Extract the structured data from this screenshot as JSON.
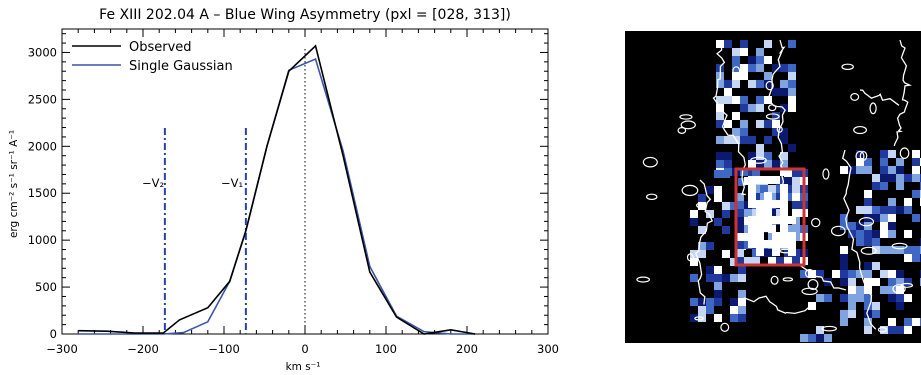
{
  "chart_data": [
    {
      "type": "line",
      "title": "Fe XIII 202.04 A – Blue Wing Asymmetry (pxl = [028, 313])",
      "xlabel": "km s⁻¹",
      "ylabel": "erg cm⁻² s⁻¹ sr⁻¹ A⁻¹",
      "xlim": [
        -300,
        300
      ],
      "ylim": [
        0,
        3250
      ],
      "xticks": [
        "−300",
        "−200",
        "−100",
        "0",
        "100",
        "200",
        "300"
      ],
      "yticks": [
        "0",
        "500",
        "1000",
        "1500",
        "2000",
        "2500",
        "3000"
      ],
      "legend_position": "top-left",
      "series": [
        {
          "name": "Observed",
          "color": "#000000",
          "x": [
            -280,
            -245,
            -210,
            -175,
            -155,
            -120,
            -93,
            -73,
            -47,
            -20,
            13,
            47,
            80,
            113,
            147,
            180,
            210
          ],
          "values": [
            35,
            30,
            10,
            10,
            150,
            280,
            560,
            1100,
            2000,
            2800,
            3070,
            1900,
            660,
            180,
            0,
            45,
            0
          ]
        },
        {
          "name": "Single Gaussian",
          "color": "#3c55a5",
          "x": [
            -280,
            -245,
            -210,
            -175,
            -150,
            -120,
            -93,
            -73,
            -47,
            -20,
            13,
            47,
            80,
            113,
            147,
            180,
            210
          ],
          "values": [
            0,
            0,
            0,
            0,
            15,
            130,
            560,
            1100,
            2000,
            2810,
            2930,
            1950,
            720,
            190,
            25,
            0,
            0
          ]
        }
      ],
      "annotations": [
        {
          "label": "−V₂",
          "x": -173,
          "line": "blue dash-dot vertical"
        },
        {
          "label": "−V₁",
          "x": -73,
          "line": "blue dash-dot vertical"
        },
        {
          "label": "",
          "x": 0,
          "line": "black dotted vertical"
        }
      ]
    },
    {
      "type": "heatmap",
      "description_colormap": "black background, blue–white intensity with white contours",
      "highlight_box_color": "#cc3333"
    }
  ],
  "labels": {
    "v2": "−V₂",
    "v1": "−V₁"
  }
}
